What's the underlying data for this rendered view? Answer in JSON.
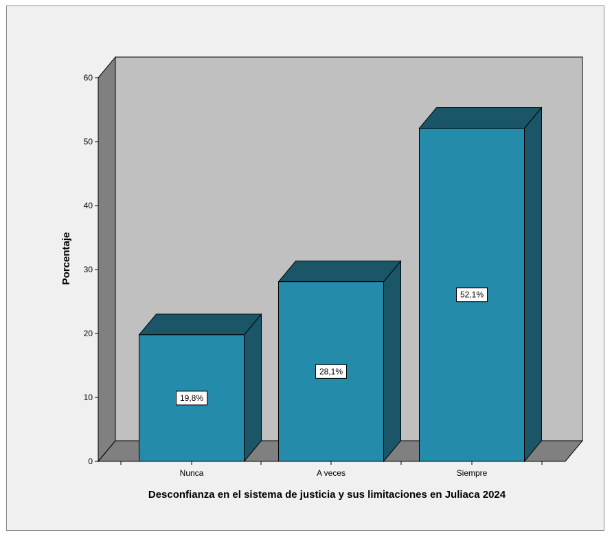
{
  "chart_data": {
    "type": "bar",
    "categories": [
      "Nunca",
      "A veces",
      "Siempre"
    ],
    "values": [
      19.8,
      28.1,
      52.1
    ],
    "data_labels": [
      "19,8%",
      "28,1%",
      "52,1%"
    ],
    "title": "",
    "xlabel": "Desconfianza en el sistema de justicia y sus limitaciones en Juliaca 2024",
    "ylabel": "Porcentaje",
    "ylim": [
      0,
      60
    ],
    "yticks": [
      0,
      10,
      20,
      30,
      40,
      50,
      60
    ],
    "ytick_labels": [
      "0",
      "10",
      "20",
      "30",
      "40",
      "50",
      "60"
    ],
    "grid": false,
    "legend": "none",
    "style": "3d-bar",
    "colors": {
      "bar_front": "#248bab",
      "bar_top": "#1b5568",
      "bar_side": "#1b5568",
      "back_wall": "#c0c0c0",
      "side_wall": "#808080",
      "floor": "#808080",
      "frame_background": "#f0f0f0"
    }
  }
}
